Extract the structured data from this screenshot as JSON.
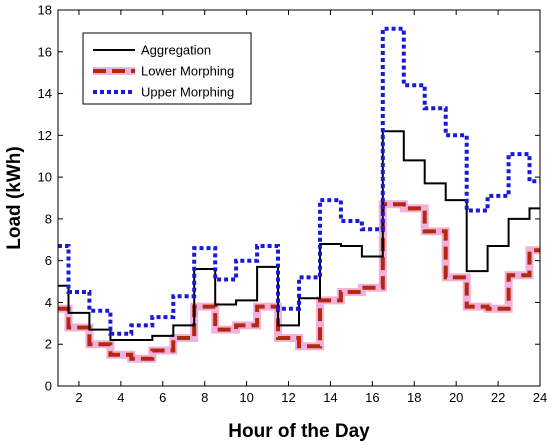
{
  "chart_data": {
    "type": "line",
    "step": true,
    "title": "",
    "xlabel": "Hour of the Day",
    "ylabel": "Load (kWh)",
    "xlim": [
      1,
      24
    ],
    "ylim": [
      0,
      18
    ],
    "xticks": [
      2,
      4,
      6,
      8,
      10,
      12,
      14,
      16,
      18,
      20,
      22,
      24
    ],
    "yticks": [
      0,
      2,
      4,
      6,
      8,
      10,
      12,
      14,
      16,
      18
    ],
    "grid": false,
    "legend_position": "top-left",
    "x": [
      1,
      2,
      3,
      4,
      5,
      6,
      7,
      8,
      9,
      10,
      11,
      12,
      13,
      14,
      15,
      16,
      17,
      18,
      19,
      20,
      21,
      22,
      23,
      24
    ],
    "series": [
      {
        "name": "Aggregation",
        "color": "#000000",
        "style": "solid",
        "values": [
          4.8,
          3.5,
          2.7,
          2.2,
          2.2,
          2.4,
          2.9,
          5.6,
          3.9,
          4.1,
          5.7,
          2.9,
          4.2,
          6.8,
          6.7,
          6.2,
          12.2,
          10.8,
          9.7,
          8.9,
          5.5,
          6.7,
          8.0,
          8.5
        ]
      },
      {
        "name": "Lower Morphing",
        "color": "#b5280e",
        "glow_color": "#f2b0dc",
        "style": "dashed",
        "values": [
          3.7,
          2.8,
          2.0,
          1.5,
          1.3,
          1.7,
          2.3,
          3.8,
          2.7,
          2.9,
          3.8,
          2.3,
          1.9,
          4.1,
          4.5,
          4.7,
          8.7,
          8.5,
          7.4,
          5.2,
          3.8,
          3.7,
          5.3,
          6.5
        ]
      },
      {
        "name": "Upper Morphing",
        "color": "#1a1ad6",
        "style": "dotted",
        "values": [
          6.7,
          4.5,
          3.6,
          2.5,
          2.9,
          3.3,
          4.3,
          6.6,
          5.1,
          6.0,
          6.7,
          3.7,
          5.2,
          8.9,
          7.9,
          7.5,
          17.1,
          14.4,
          13.3,
          12.0,
          8.4,
          9.1,
          11.1,
          9.8
        ]
      }
    ]
  }
}
